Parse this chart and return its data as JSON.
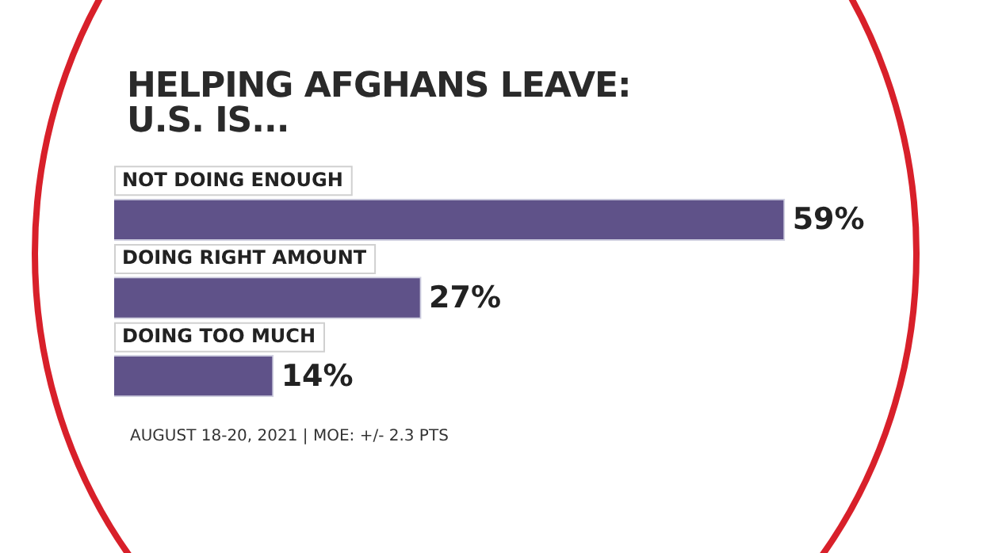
{
  "chart_data": {
    "type": "bar",
    "orientation": "horizontal",
    "title": "HELPING AFGHANS LEAVE:\nU.S. IS...",
    "categories": [
      "NOT DOING ENOUGH",
      "DOING RIGHT AMOUNT",
      "DOING TOO MUCH"
    ],
    "values": [
      59,
      27,
      14
    ],
    "value_labels": [
      "59%",
      "27%",
      "14%"
    ],
    "color": "#5f5289",
    "annotations": [
      "AUGUST 18-20, 2021 | MOE: +/- 2.3 PTS"
    ]
  }
}
